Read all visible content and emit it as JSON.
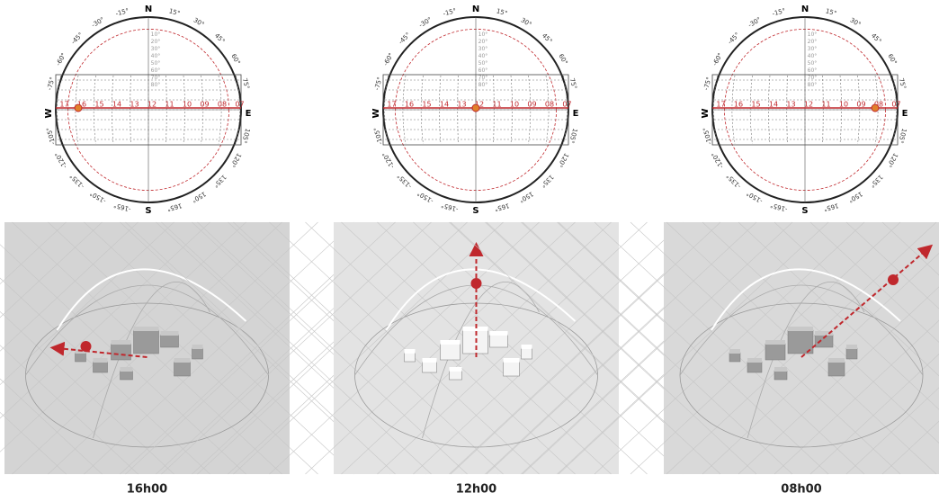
{
  "sun_path": {
    "compass": {
      "north": "N",
      "south": "S",
      "east": "E",
      "west": "W"
    },
    "azimuth_labels": [
      "-15°",
      "15°",
      "-30°",
      "30°",
      "-45°",
      "45°",
      "-60°",
      "60°",
      "-75°",
      "75°",
      "-105°",
      "105°",
      "-120°",
      "120°",
      "-135°",
      "135°",
      "-150°",
      "150°",
      "-165°",
      "165°"
    ],
    "altitude_labels": [
      "10°",
      "20°",
      "30°",
      "40°",
      "50°",
      "60°",
      "70°",
      "80°"
    ],
    "hour_labels": [
      "17",
      "16",
      "15",
      "14",
      "13",
      "12",
      "11",
      "10",
      "09",
      "08",
      "07"
    ]
  },
  "panels": [
    {
      "caption": "16h00"
    },
    {
      "caption": "12h00"
    },
    {
      "caption": "08h00"
    }
  ]
}
